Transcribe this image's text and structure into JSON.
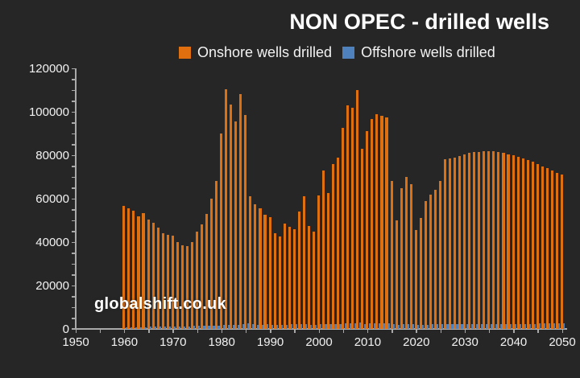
{
  "title": "NON OPEC - drilled wells",
  "watermark": "globalshift.co.uk",
  "colors": {
    "background": "#262626",
    "axis": "#a9a9a9",
    "text": "#f2f2f2",
    "onshore": "#e0700f",
    "offshore": "#4f81bd"
  },
  "chart_data": {
    "type": "bar",
    "title": "NON OPEC - drilled wells",
    "legend_position": "top",
    "grid": false,
    "years": [
      1960,
      1961,
      1962,
      1963,
      1964,
      1965,
      1966,
      1967,
      1968,
      1969,
      1970,
      1971,
      1972,
      1973,
      1974,
      1975,
      1976,
      1977,
      1978,
      1979,
      1980,
      1981,
      1982,
      1983,
      1984,
      1985,
      1986,
      1987,
      1988,
      1989,
      1990,
      1991,
      1992,
      1993,
      1994,
      1995,
      1996,
      1997,
      1998,
      1999,
      2000,
      2001,
      2002,
      2003,
      2004,
      2005,
      2006,
      2007,
      2008,
      2009,
      2010,
      2011,
      2012,
      2013,
      2014,
      2015,
      2016,
      2017,
      2018,
      2019,
      2020,
      2021,
      2022,
      2023,
      2024,
      2025,
      2026,
      2027,
      2028,
      2029,
      2030,
      2031,
      2032,
      2033,
      2034,
      2035,
      2036,
      2037,
      2038,
      2039,
      2040,
      2041,
      2042,
      2043,
      2044,
      2045,
      2046,
      2047,
      2048,
      2049,
      2050
    ],
    "series": [
      {
        "name": "Onshore wells drilled",
        "color": "#e0700f",
        "values": [
          56500,
          55500,
          54500,
          52000,
          53500,
          50500,
          49000,
          46500,
          44000,
          43500,
          43000,
          40000,
          38500,
          38000,
          40000,
          45000,
          48000,
          53000,
          60000,
          68000,
          90000,
          110500,
          103500,
          95500,
          108000,
          98500,
          61000,
          57500,
          55500,
          52500,
          51500,
          44000,
          42500,
          48500,
          47000,
          46000,
          54000,
          61000,
          47500,
          45000,
          61500,
          73000,
          62500,
          76000,
          79000,
          92500,
          103000,
          102000,
          110000,
          83000,
          91000,
          96500,
          99000,
          98000,
          97500,
          68000,
          50000,
          65000,
          70000,
          66500,
          45500,
          51000,
          59000,
          62000,
          64000,
          68000,
          78000,
          78500,
          79000,
          79500,
          80500,
          81000,
          81500,
          81500,
          82000,
          82000,
          81800,
          81500,
          81000,
          80500,
          80000,
          79300,
          78500,
          77800,
          77000,
          76000,
          75000,
          74000,
          73000,
          72000,
          71000
        ]
      },
      {
        "name": "Offshore wells drilled",
        "color": "#4f81bd",
        "values": [
          700,
          750,
          800,
          850,
          900,
          950,
          1000,
          1000,
          1050,
          1100,
          1100,
          1150,
          1200,
          1250,
          1300,
          1400,
          1400,
          1450,
          1500,
          1600,
          1700,
          1800,
          1900,
          2000,
          2400,
          2500,
          2100,
          2000,
          2000,
          2100,
          2000,
          1900,
          1900,
          2000,
          2100,
          2100,
          2200,
          2300,
          2000,
          1900,
          2200,
          2300,
          2200,
          2300,
          2400,
          2500,
          2600,
          2700,
          2800,
          2400,
          2500,
          2600,
          2600,
          2700,
          2700,
          2300,
          2000,
          2100,
          2200,
          2200,
          1800,
          1900,
          2000,
          2100,
          2100,
          2200,
          2200,
          2300,
          2300,
          2300,
          2300,
          2400,
          2400,
          2400,
          2400,
          2400,
          2400,
          2400,
          2400,
          2400,
          2400,
          2400,
          2400,
          2400,
          2400,
          2500,
          2500,
          2500,
          2500,
          2500,
          2500
        ]
      }
    ],
    "x_axis": {
      "tick_start": 1950,
      "tick_end": 2050,
      "minor_step": 5,
      "label_step": 10,
      "tick_labels": [
        "1950",
        "1960",
        "1970",
        "1980",
        "1990",
        "2000",
        "2010",
        "2020",
        "2030",
        "2040",
        "2050"
      ]
    },
    "y_axis": {
      "min": 0,
      "max": 120000,
      "minor_step": 5000,
      "label_step": 20000,
      "tick_labels": [
        "0",
        "20000",
        "40000",
        "60000",
        "80000",
        "100000",
        "120000"
      ]
    }
  }
}
